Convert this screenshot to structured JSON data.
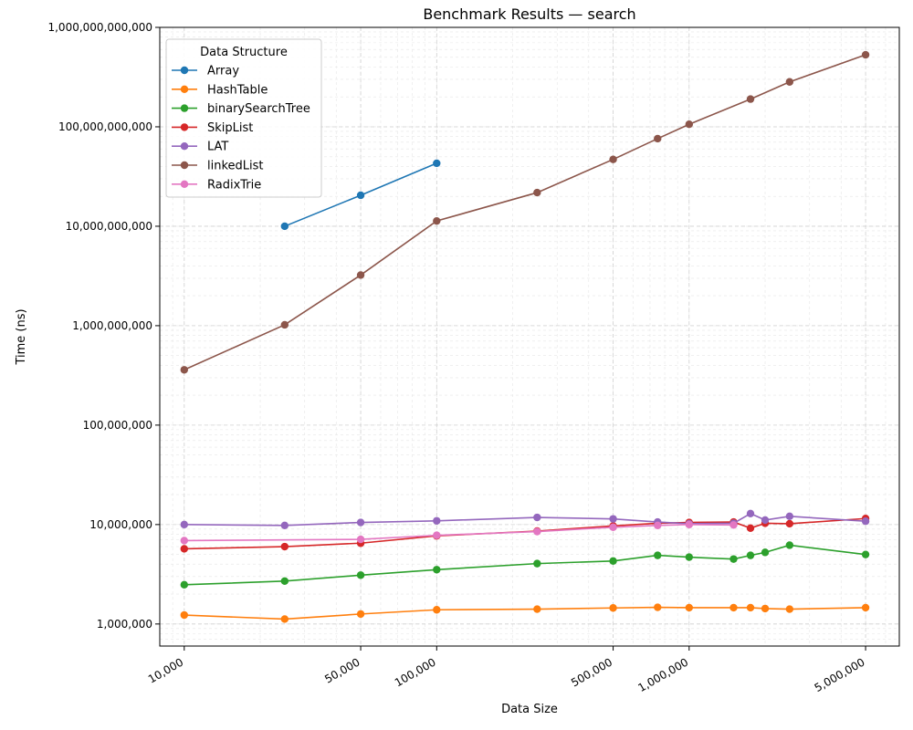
{
  "chart_data": {
    "type": "line",
    "title": "Benchmark Results — search",
    "xlabel": "Data Size",
    "ylabel": "Time (ns)",
    "xscale": "log",
    "yscale": "log",
    "xlim": [
      8000,
      6800000
    ],
    "ylim": [
      600000,
      1000000000000
    ],
    "grid": true,
    "legend": {
      "title": "Data Structure",
      "placement": "top-left"
    },
    "x_ticks": [
      {
        "value": 10000,
        "label": "10,000"
      },
      {
        "value": 50000,
        "label": "50,000"
      },
      {
        "value": 100000,
        "label": "100,000"
      },
      {
        "value": 500000,
        "label": "500,000"
      },
      {
        "value": 1000000,
        "label": "1,000,000"
      },
      {
        "value": 5000000,
        "label": "5,000,000"
      }
    ],
    "y_ticks": [
      {
        "value": 1000000,
        "label": "1,000,000"
      },
      {
        "value": 10000000,
        "label": "10,000,000"
      },
      {
        "value": 100000000,
        "label": "100,000,000"
      },
      {
        "value": 1000000000,
        "label": "1,000,000,000"
      },
      {
        "value": 10000000000,
        "label": "10,000,000,000"
      },
      {
        "value": 100000000000,
        "label": "100,000,000,000"
      },
      {
        "value": 1000000000000,
        "label": "1,000,000,000,000"
      }
    ],
    "series": [
      {
        "name": "Array",
        "color": "#1f77b4",
        "x": [
          25000,
          50000,
          100000
        ],
        "y": [
          10000000000,
          20500000000,
          43000000000
        ]
      },
      {
        "name": "HashTable",
        "color": "#ff7f0e",
        "x": [
          10000,
          25000,
          50000,
          100000,
          250000,
          500000,
          750000,
          1000000,
          1500000,
          1750000,
          2000000,
          2500000,
          5000000
        ],
        "y": [
          1230000,
          1120000,
          1260000,
          1390000,
          1410000,
          1450000,
          1470000,
          1460000,
          1460000,
          1460000,
          1430000,
          1410000,
          1460000
        ]
      },
      {
        "name": "binarySearchTree",
        "color": "#2ca02c",
        "x": [
          10000,
          25000,
          50000,
          100000,
          250000,
          500000,
          750000,
          1000000,
          1500000,
          1750000,
          2000000,
          2500000,
          5000000
        ],
        "y": [
          2480000,
          2700000,
          3100000,
          3520000,
          4050000,
          4300000,
          4900000,
          4700000,
          4500000,
          4900000,
          5250000,
          6200000,
          5000000
        ]
      },
      {
        "name": "SkipList",
        "color": "#d62728",
        "x": [
          10000,
          25000,
          50000,
          100000,
          250000,
          500000,
          750000,
          1000000,
          1500000,
          1750000,
          2000000,
          2500000,
          5000000
        ],
        "y": [
          5700000,
          6000000,
          6500000,
          7700000,
          8600000,
          9700000,
          10300000,
          10500000,
          10600000,
          9200000,
          10300000,
          10200000,
          11500000
        ]
      },
      {
        "name": "LAT",
        "color": "#9467bd",
        "x": [
          10000,
          25000,
          50000,
          100000,
          250000,
          500000,
          750000,
          1000000,
          1500000,
          1750000,
          2000000,
          2500000,
          5000000
        ],
        "y": [
          10000000,
          9800000,
          10500000,
          10900000,
          11800000,
          11400000,
          10600000,
          10200000,
          10300000,
          12900000,
          11100000,
          12100000,
          10800000
        ]
      },
      {
        "name": "linkedList",
        "color": "#8c564b",
        "x": [
          10000,
          25000,
          50000,
          100000,
          250000,
          500000,
          750000,
          1000000,
          1750000,
          2500000,
          5000000
        ],
        "y": [
          360000000,
          1020000000,
          3230000000,
          11300000000,
          21800000000,
          47000000000,
          76000000000,
          106000000000,
          190000000000,
          283000000000,
          530000000000
        ]
      },
      {
        "name": "RadixTrie",
        "color": "#e377c2",
        "x": [
          10000,
          50000,
          100000,
          250000,
          500000,
          750000,
          1000000,
          1500000
        ],
        "y": [
          6900000,
          7100000,
          7800000,
          8500000,
          9400000,
          9800000,
          10000000,
          9900000
        ]
      }
    ]
  }
}
